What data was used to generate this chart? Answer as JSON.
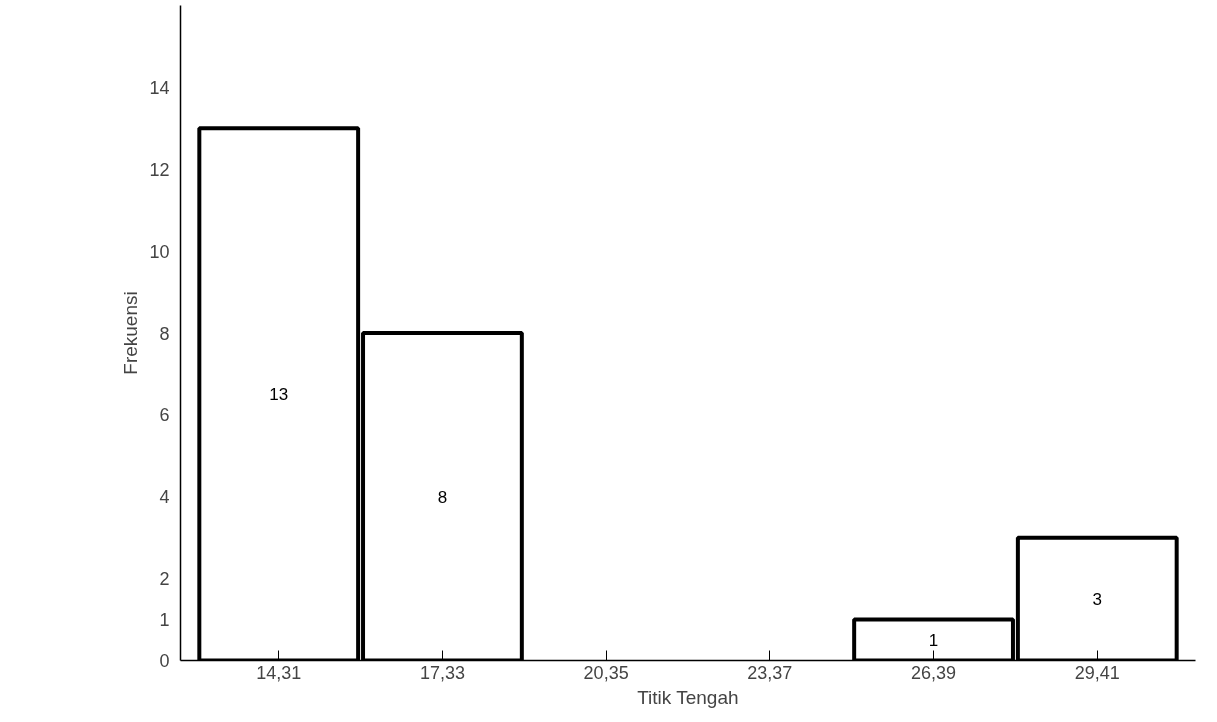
{
  "chart_data": {
    "type": "bar",
    "xlabel": "Titik Tengah",
    "ylabel": "Frekuensi",
    "categories": [
      "14,31",
      "17,33",
      "20,35",
      "23,37",
      "26,39",
      "29,41"
    ],
    "values": [
      13,
      8,
      null,
      null,
      1,
      3
    ],
    "value_labels": [
      "13",
      "8",
      null,
      null,
      "1",
      "3"
    ],
    "color": "#ffffff",
    "ylim": [
      0,
      16
    ],
    "yticks": [
      0,
      1,
      2,
      4,
      6,
      8,
      10,
      12,
      14
    ],
    "grid": false
  }
}
